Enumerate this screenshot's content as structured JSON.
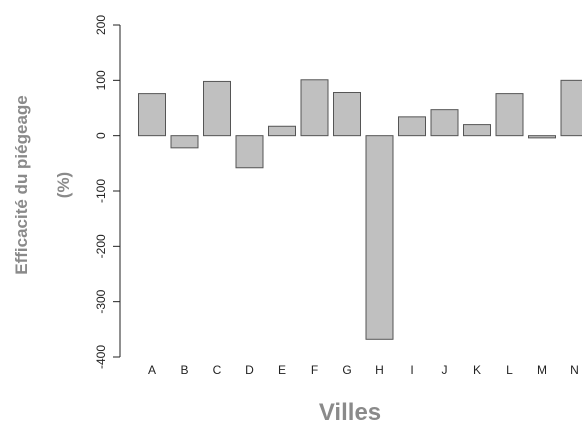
{
  "chart_data": {
    "type": "bar",
    "categories": [
      "A",
      "B",
      "C",
      "D",
      "E",
      "F",
      "G",
      "H",
      "I",
      "J",
      "K",
      "L",
      "M",
      "N"
    ],
    "values": [
      76,
      -22,
      98,
      -58,
      17,
      101,
      78,
      -368,
      34,
      47,
      20,
      76,
      -4,
      100
    ],
    "ylabel_line1": "Efficacité du piégeage",
    "ylabel_line2": "(%)",
    "xlabel": "Villes",
    "ylim": [
      -400,
      200
    ],
    "yticks": [
      "200",
      "100",
      "0",
      "-100",
      "-200",
      "-300",
      "-400"
    ],
    "ytick_values": [
      200,
      100,
      0,
      -100,
      -200,
      -300,
      -400
    ],
    "grid": false,
    "bar_color": "#c0c0c0"
  }
}
